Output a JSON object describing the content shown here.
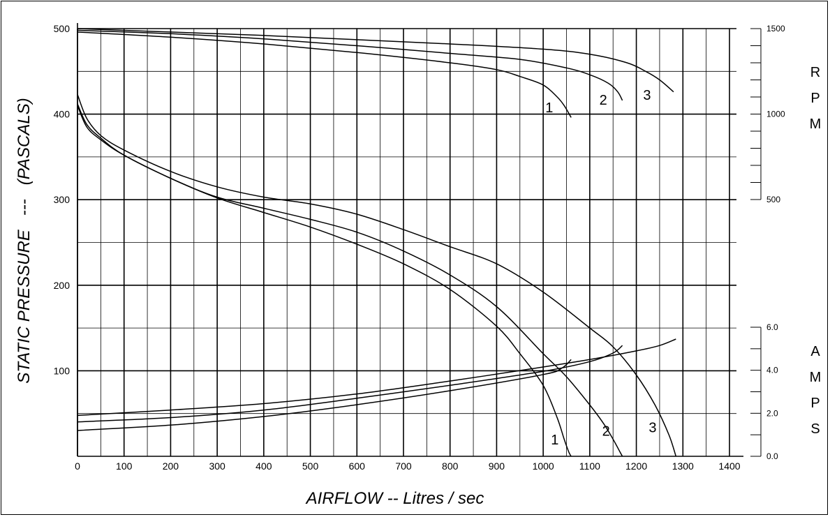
{
  "chart_data": {
    "type": "line",
    "xlabel": "AIRFLOW  --  Litres / sec",
    "ylabel": "STATIC PRESSURE   ---   (PASCALS)",
    "xlim": [
      0,
      1400
    ],
    "ylim": [
      0,
      500
    ],
    "grid": true,
    "x_ticks": [
      0,
      100,
      200,
      300,
      400,
      500,
      600,
      700,
      800,
      900,
      1000,
      1100,
      1200,
      1300,
      1400
    ],
    "y_ticks": [
      100,
      200,
      300,
      400,
      500
    ],
    "rpm_axis": {
      "label_letters": [
        "R",
        "P",
        "M"
      ],
      "range": [
        500,
        1500
      ],
      "ticks": [
        {
          "value": 1500,
          "label": "1500"
        },
        {
          "value": 1000,
          "label": "1000"
        },
        {
          "value": 500,
          "label": "500"
        }
      ],
      "minor_ticks": [
        1400,
        1300,
        1200,
        1100,
        900,
        800,
        700,
        600
      ]
    },
    "amps_axis": {
      "label_letters": [
        "A",
        "M",
        "P",
        "S"
      ],
      "range": [
        0,
        6
      ],
      "ticks": [
        {
          "value": 6,
          "label": "6.0"
        },
        {
          "value": 4,
          "label": "4.0"
        },
        {
          "value": 2,
          "label": "2.0"
        },
        {
          "value": 0,
          "label": "0.0"
        }
      ],
      "minor_ticks": [
        5,
        3,
        1
      ]
    },
    "series": [
      {
        "group": "pressure",
        "label": "1",
        "x": [
          0,
          20,
          50,
          100,
          200,
          300,
          400,
          500,
          600,
          700,
          800,
          900,
          950,
          1000,
          1030,
          1045,
          1055,
          1060
        ],
        "y": [
          410,
          385,
          370,
          352,
          325,
          302,
          285,
          268,
          248,
          225,
          195,
          152,
          120,
          83,
          45,
          20,
          5,
          0
        ]
      },
      {
        "group": "pressure",
        "label": "2",
        "x": [
          0,
          20,
          50,
          100,
          200,
          300,
          400,
          500,
          600,
          700,
          800,
          900,
          1000,
          1050,
          1100,
          1130,
          1150,
          1165,
          1170
        ],
        "y": [
          412,
          388,
          372,
          352,
          325,
          303,
          290,
          277,
          262,
          240,
          212,
          175,
          120,
          93,
          60,
          38,
          20,
          5,
          0
        ]
      },
      {
        "group": "pressure",
        "label": "3",
        "x": [
          0,
          20,
          50,
          100,
          200,
          300,
          400,
          500,
          600,
          700,
          800,
          900,
          1000,
          1100,
          1150,
          1200,
          1240,
          1270,
          1285
        ],
        "y": [
          423,
          395,
          375,
          358,
          333,
          315,
          303,
          295,
          283,
          265,
          245,
          225,
          192,
          150,
          128,
          95,
          60,
          25,
          0
        ]
      },
      {
        "group": "rpm",
        "label": "1",
        "x": [
          0,
          200,
          400,
          600,
          800,
          900,
          950,
          1000,
          1030,
          1045,
          1060
        ],
        "y": [
          1480,
          1450,
          1410,
          1360,
          1300,
          1260,
          1220,
          1170,
          1100,
          1050,
          980
        ]
      },
      {
        "group": "rpm",
        "label": "2",
        "x": [
          0,
          200,
          400,
          600,
          800,
          950,
          1050,
          1100,
          1140,
          1160,
          1170
        ],
        "y": [
          1490,
          1470,
          1440,
          1400,
          1355,
          1320,
          1270,
          1230,
          1180,
          1130,
          1080
        ]
      },
      {
        "group": "rpm",
        "label": "3",
        "x": [
          0,
          200,
          400,
          600,
          800,
          1000,
          1100,
          1180,
          1220,
          1250,
          1280
        ],
        "y": [
          1500,
          1480,
          1460,
          1435,
          1410,
          1380,
          1350,
          1300,
          1250,
          1200,
          1130
        ]
      },
      {
        "group": "amps",
        "label": "1",
        "x": [
          0,
          200,
          400,
          600,
          800,
          1000,
          1040,
          1060
        ],
        "y": [
          1.2,
          1.45,
          1.85,
          2.4,
          3.05,
          3.8,
          4.1,
          4.5
        ]
      },
      {
        "group": "amps",
        "label": "2",
        "x": [
          0,
          200,
          400,
          600,
          800,
          1000,
          1100,
          1150,
          1170
        ],
        "y": [
          1.6,
          1.8,
          2.15,
          2.7,
          3.3,
          3.95,
          4.4,
          4.8,
          5.15
        ]
      },
      {
        "group": "amps",
        "label": "3",
        "x": [
          0,
          200,
          400,
          600,
          800,
          1000,
          1100,
          1200,
          1250,
          1285
        ],
        "y": [
          1.9,
          2.15,
          2.45,
          2.9,
          3.5,
          4.15,
          4.5,
          4.9,
          5.15,
          5.45
        ]
      }
    ],
    "curve_labels": [
      {
        "text": "1",
        "x": 1025,
        "y": 14
      },
      {
        "text": "2",
        "x": 1135,
        "y": 24
      },
      {
        "text": "3",
        "x": 1235,
        "y": 28
      },
      {
        "text": "1",
        "x": 1013,
        "y": 402
      },
      {
        "text": "2",
        "x": 1129,
        "y": 411
      },
      {
        "text": "3",
        "x": 1223,
        "y": 417
      }
    ]
  }
}
